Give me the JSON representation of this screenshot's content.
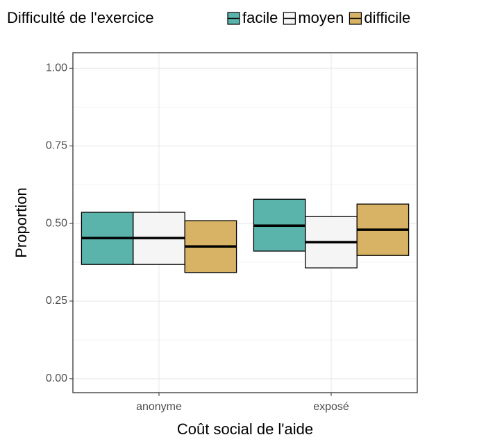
{
  "chart_data": {
    "type": "crossbar",
    "legend_title": "Difficulté de l'exercice",
    "legend_position": "top",
    "x_label": "Coût social de l'aide",
    "y_label": "Proportion",
    "categories": [
      "anonyme",
      "exposé"
    ],
    "series": [
      {
        "name": "facile",
        "color": "#5ab4ac",
        "values": [
          0.453,
          0.493
        ],
        "lower": [
          0.368,
          0.411
        ],
        "upper": [
          0.536,
          0.578
        ]
      },
      {
        "name": "moyen",
        "color": "#f5f5f5",
        "values": [
          0.453,
          0.44
        ],
        "lower": [
          0.368,
          0.357
        ],
        "upper": [
          0.536,
          0.522
        ]
      },
      {
        "name": "difficile",
        "color": "#d8b365",
        "values": [
          0.426,
          0.48
        ],
        "lower": [
          0.342,
          0.397
        ],
        "upper": [
          0.509,
          0.5625
        ]
      }
    ],
    "ylim": [
      -0.045,
      1.05
    ],
    "yticks": [
      {
        "value": 0,
        "label": "0.00"
      },
      {
        "value": 0.25,
        "label": "0.25"
      },
      {
        "value": 0.5,
        "label": "0.50"
      },
      {
        "value": 0.75,
        "label": "0.75"
      },
      {
        "value": 1,
        "label": "1.00"
      }
    ],
    "grid": true
  }
}
